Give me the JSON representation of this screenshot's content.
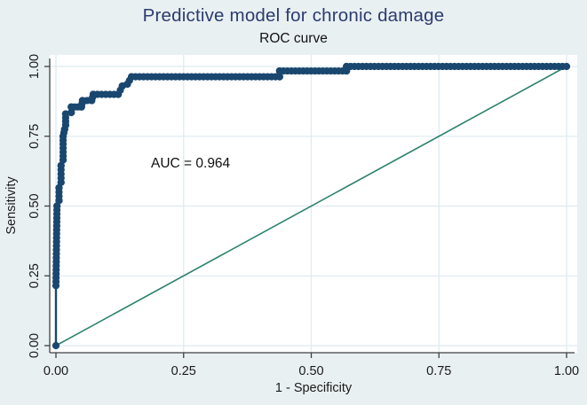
{
  "colors": {
    "background": "#e9f0f2",
    "plot_background": "#ffffff",
    "grid": "#dfebf1",
    "axis": "#3f3f3f",
    "tick_text": "#1a1a1a",
    "title_text": "#2b3c6f",
    "subtitle_text": "#111111",
    "roc": "#1a476f",
    "reference": "#2d826e",
    "annotation_text": "#111111"
  },
  "chart_data": {
    "type": "line",
    "title": "Predictive model for chronic damage",
    "subtitle": "ROC curve",
    "xlabel": "1 - Specificity",
    "ylabel": "Sensitivity",
    "xlim": [
      0,
      1
    ],
    "ylim": [
      0,
      1
    ],
    "grid": true,
    "legend": "none",
    "auc": 0.964,
    "annotation": {
      "text": "AUC = 0.964",
      "x": 0.19,
      "y": 0.65
    },
    "x_ticks": [
      {
        "v": 0.0,
        "label": "0.00"
      },
      {
        "v": 0.25,
        "label": "0.25"
      },
      {
        "v": 0.5,
        "label": "0.50"
      },
      {
        "v": 0.75,
        "label": "0.75"
      },
      {
        "v": 1.0,
        "label": "1.00"
      }
    ],
    "y_ticks": [
      {
        "v": 0.0,
        "label": "0.00"
      },
      {
        "v": 0.25,
        "label": "0.25"
      },
      {
        "v": 0.5,
        "label": "0.50"
      },
      {
        "v": 0.75,
        "label": "0.75"
      },
      {
        "v": 1.0,
        "label": "1.00"
      }
    ],
    "series": [
      {
        "name": "ROC curve",
        "style": "connected-markers",
        "marker_from": 1,
        "points": [
          [
            0.0,
            0.0
          ],
          [
            0.0,
            0.215
          ],
          [
            0.002,
            0.5
          ],
          [
            0.006,
            0.52
          ],
          [
            0.006,
            0.565
          ],
          [
            0.01,
            0.585
          ],
          [
            0.01,
            0.645
          ],
          [
            0.014,
            0.665
          ],
          [
            0.014,
            0.75
          ],
          [
            0.017,
            0.775
          ],
          [
            0.019,
            0.79
          ],
          [
            0.019,
            0.83
          ],
          [
            0.03,
            0.835
          ],
          [
            0.03,
            0.855
          ],
          [
            0.05,
            0.855
          ],
          [
            0.052,
            0.878
          ],
          [
            0.07,
            0.878
          ],
          [
            0.073,
            0.9
          ],
          [
            0.122,
            0.9
          ],
          [
            0.13,
            0.93
          ],
          [
            0.14,
            0.937
          ],
          [
            0.148,
            0.963
          ],
          [
            0.438,
            0.963
          ],
          [
            0.438,
            0.984
          ],
          [
            0.569,
            0.984
          ],
          [
            0.569,
            1.0
          ],
          [
            1.0,
            1.0
          ]
        ]
      },
      {
        "name": "Reference line",
        "style": "line",
        "points": [
          [
            0,
            0
          ],
          [
            1,
            1
          ]
        ]
      }
    ]
  }
}
